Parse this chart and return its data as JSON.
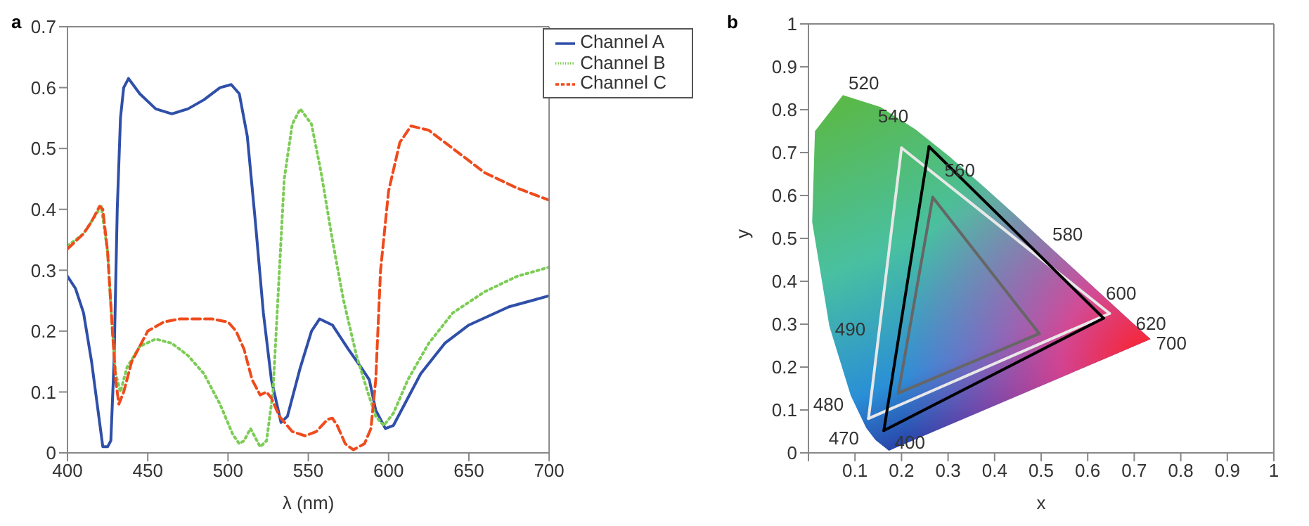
{
  "chart_data": [
    {
      "type": "line",
      "annotations": [
        "a"
      ],
      "xlabel": "λ (nm)",
      "xlim": [
        400,
        700
      ],
      "xticks": [
        400,
        450,
        500,
        550,
        600,
        650,
        700
      ],
      "ylim": [
        0,
        0.7
      ],
      "yticks": [
        0,
        0.1,
        0.2,
        0.3,
        0.4,
        0.5,
        0.6,
        0.7
      ],
      "grid": false,
      "legend": "top right",
      "marker": "none",
      "series": [
        {
          "name": "Channel A",
          "color": "#2f4fa8",
          "line_style": "solid",
          "x": [
            400,
            405,
            410,
            415,
            420,
            422,
            425,
            427,
            429,
            431,
            433,
            435,
            438,
            445,
            455,
            465,
            475,
            485,
            495,
            502,
            507,
            512,
            517,
            522,
            527,
            533,
            537,
            545,
            552,
            557,
            565,
            575,
            583,
            588,
            592,
            598,
            603,
            610,
            620,
            635,
            650,
            675,
            700
          ],
          "values": [
            0.29,
            0.27,
            0.23,
            0.15,
            0.05,
            0.01,
            0.01,
            0.02,
            0.15,
            0.4,
            0.55,
            0.6,
            0.615,
            0.59,
            0.565,
            0.557,
            0.565,
            0.58,
            0.6,
            0.605,
            0.59,
            0.52,
            0.38,
            0.23,
            0.12,
            0.05,
            0.06,
            0.14,
            0.2,
            0.22,
            0.21,
            0.17,
            0.14,
            0.12,
            0.07,
            0.04,
            0.045,
            0.08,
            0.13,
            0.18,
            0.21,
            0.24,
            0.258
          ]
        },
        {
          "name": "Channel B",
          "color": "#7ccc55",
          "line_style": "dotted",
          "x": [
            400,
            410,
            421,
            425,
            428,
            430,
            433,
            437,
            445,
            455,
            465,
            475,
            485,
            495,
            503,
            507,
            510,
            514,
            516,
            520,
            524,
            528,
            531,
            535,
            540,
            545,
            552,
            558,
            565,
            572,
            580,
            587,
            592,
            597,
            603,
            612,
            625,
            640,
            660,
            680,
            700
          ],
          "values": [
            0.34,
            0.36,
            0.405,
            0.33,
            0.2,
            0.13,
            0.1,
            0.14,
            0.175,
            0.187,
            0.18,
            0.16,
            0.13,
            0.08,
            0.03,
            0.015,
            0.02,
            0.04,
            0.03,
            0.01,
            0.02,
            0.1,
            0.25,
            0.45,
            0.54,
            0.565,
            0.54,
            0.46,
            0.35,
            0.25,
            0.16,
            0.1,
            0.06,
            0.045,
            0.065,
            0.12,
            0.18,
            0.23,
            0.265,
            0.29,
            0.305
          ]
        },
        {
          "name": "Channel C",
          "color": "#ef4b1c",
          "line_style": "dashed",
          "x": [
            400,
            410,
            415,
            420,
            422,
            425,
            428,
            430,
            432,
            435,
            440,
            450,
            460,
            470,
            490,
            500,
            505,
            510,
            515,
            520,
            524,
            527,
            532,
            540,
            548,
            555,
            562,
            565,
            568,
            573,
            578,
            585,
            589,
            592,
            595,
            600,
            607,
            614,
            625,
            640,
            660,
            680,
            700
          ],
          "values": [
            0.335,
            0.36,
            0.38,
            0.405,
            0.4,
            0.33,
            0.2,
            0.12,
            0.08,
            0.1,
            0.15,
            0.2,
            0.215,
            0.22,
            0.22,
            0.215,
            0.2,
            0.17,
            0.12,
            0.095,
            0.1,
            0.09,
            0.06,
            0.035,
            0.028,
            0.035,
            0.055,
            0.057,
            0.045,
            0.015,
            0.005,
            0.015,
            0.04,
            0.12,
            0.3,
            0.43,
            0.51,
            0.537,
            0.53,
            0.5,
            0.46,
            0.435,
            0.415
          ]
        }
      ]
    },
    {
      "type": "line",
      "annotations": [
        "b",
        "520",
        "540",
        "560",
        "580",
        "600",
        "620",
        "700",
        "490",
        "480",
        "470",
        "400"
      ],
      "xlabel": "x",
      "ylabel": "y",
      "xlim": [
        0,
        1
      ],
      "xticks": [
        {
          "value": 0,
          "label": null
        },
        0.1,
        0.2,
        0.3,
        0.4,
        0.5,
        0.6,
        0.7,
        0.8,
        0.9,
        1
      ],
      "ylim": [
        0,
        1
      ],
      "yticks": [
        0,
        0.1,
        0.2,
        0.3,
        0.4,
        0.5,
        0.6,
        0.7,
        0.8,
        0.9,
        1
      ],
      "grid": false,
      "legend": false,
      "marker": "none",
      "series": [
        {
          "color": "#e8e8e8",
          "line_style": "solid",
          "x": [
            0.129,
            0.2
          ],
          "values": [
            0.08,
            0.711
          ]
        },
        {
          "color": "#e8e8e8",
          "line_style": "solid",
          "x": [
            0.2,
            0.647
          ],
          "values": [
            0.711,
            0.325
          ]
        },
        {
          "color": "#e8e8e8",
          "line_style": "solid",
          "x": [
            0.129,
            0.647
          ],
          "values": [
            0.08,
            0.325
          ]
        },
        {
          "color": "#000000",
          "line_style": "solid",
          "x": [
            0.162,
            0.259
          ],
          "values": [
            0.052,
            0.714
          ]
        },
        {
          "color": "#000000",
          "line_style": "solid",
          "x": [
            0.259,
            0.634
          ],
          "values": [
            0.714,
            0.314
          ]
        },
        {
          "color": "#000000",
          "line_style": "solid",
          "x": [
            0.162,
            0.634
          ],
          "values": [
            0.052,
            0.314
          ]
        },
        {
          "color": "#666666",
          "line_style": "solid",
          "x": [
            0.193,
            0.267
          ],
          "values": [
            0.139,
            0.596
          ]
        },
        {
          "color": "#666666",
          "line_style": "solid",
          "x": [
            0.267,
            0.496
          ],
          "values": [
            0.596,
            0.278
          ]
        },
        {
          "color": "#666666",
          "line_style": "solid",
          "x": [
            0.193,
            0.496
          ],
          "values": [
            0.139,
            0.278
          ]
        }
      ]
    }
  ]
}
